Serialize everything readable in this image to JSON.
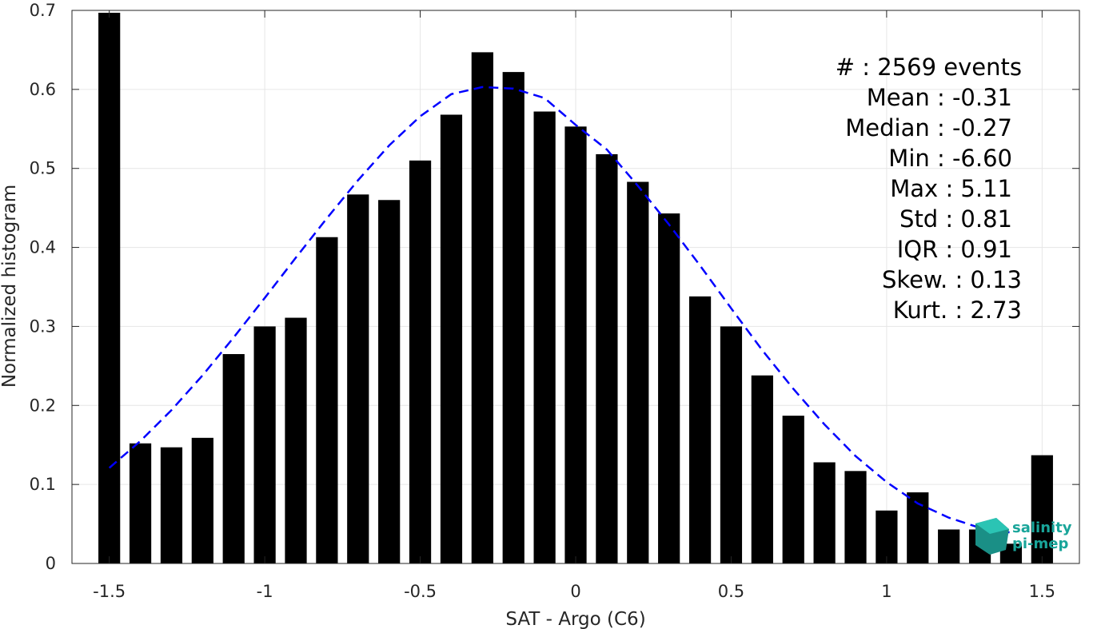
{
  "chart_data": {
    "type": "bar",
    "xlabel": "SAT - Argo (C6)",
    "ylabel": "Normalized histogram",
    "xlim": [
      -1.62,
      1.62
    ],
    "ylim": [
      0,
      0.7
    ],
    "xticks": [
      -1.5,
      -1,
      -0.5,
      0,
      0.5,
      1,
      1.5
    ],
    "xtick_labels": [
      "-1.5",
      "-1",
      "-0.5",
      "0",
      "0.5",
      "1",
      "1.5"
    ],
    "yticks": [
      0,
      0.1,
      0.2,
      0.3,
      0.4,
      0.5,
      0.6,
      0.7
    ],
    "ytick_labels": [
      "0",
      "0.1",
      "0.2",
      "0.3",
      "0.4",
      "0.5",
      "0.6",
      "0.7"
    ],
    "grid": true,
    "bar_color": "#000000",
    "bars": {
      "x": [
        -1.5,
        -1.4,
        -1.3,
        -1.2,
        -1.1,
        -1.0,
        -0.9,
        -0.8,
        -0.7,
        -0.6,
        -0.5,
        -0.4,
        -0.3,
        -0.2,
        -0.1,
        0.0,
        0.1,
        0.2,
        0.3,
        0.4,
        0.5,
        0.6,
        0.7,
        0.8,
        0.9,
        1.0,
        1.1,
        1.2,
        1.3,
        1.4,
        1.5
      ],
      "values": [
        0.697,
        0.152,
        0.147,
        0.159,
        0.265,
        0.3,
        0.311,
        0.413,
        0.467,
        0.46,
        0.51,
        0.568,
        0.647,
        0.622,
        0.572,
        0.553,
        0.518,
        0.483,
        0.443,
        0.338,
        0.3,
        0.238,
        0.187,
        0.128,
        0.117,
        0.067,
        0.09,
        0.043,
        0.043,
        0.025,
        0.137
      ]
    },
    "fit_curve": {
      "style": "dashed",
      "color": "#0000ff",
      "x": [
        -1.5,
        -1.4,
        -1.3,
        -1.2,
        -1.1,
        -1.0,
        -0.9,
        -0.8,
        -0.7,
        -0.6,
        -0.5,
        -0.4,
        -0.3,
        -0.2,
        -0.1,
        0.0,
        0.1,
        0.2,
        0.3,
        0.4,
        0.5,
        0.6,
        0.7,
        0.8,
        0.9,
        1.0,
        1.1,
        1.2,
        1.3,
        1.4
      ],
      "y": [
        0.121,
        0.155,
        0.194,
        0.238,
        0.286,
        0.336,
        0.387,
        0.437,
        0.485,
        0.529,
        0.566,
        0.594,
        0.603,
        0.601,
        0.589,
        0.555,
        0.524,
        0.478,
        0.429,
        0.377,
        0.323,
        0.27,
        0.221,
        0.176,
        0.136,
        0.103,
        0.076,
        0.058,
        0.045,
        0.039
      ]
    },
    "stats": [
      "#  : 2569 events",
      "Mean : -0.31",
      "Median : -0.27",
      "Min : -6.60",
      "Max : 5.11",
      "Std : 0.81",
      "IQR : 0.91",
      "Skew. : 0.13",
      "Kurt. : 2.73"
    ]
  },
  "logo": {
    "line1": "salinity",
    "line2": "pi-mep",
    "color": "#19a59a"
  }
}
